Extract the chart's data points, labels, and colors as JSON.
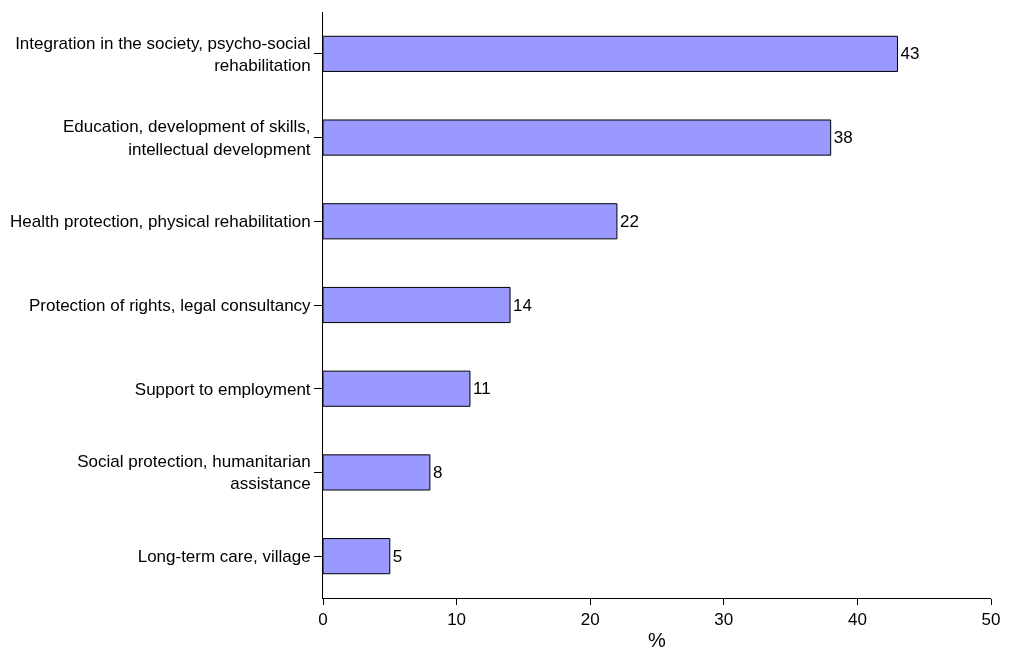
{
  "chart_data": {
    "type": "bar",
    "orientation": "horizontal",
    "xlabel": "%",
    "categories": [
      "Integration in the society, psycho-social\nrehabilitation",
      "Education, development of skills,\nintellectual development",
      "Health protection, physical rehabilitation",
      "Protection of rights, legal consultancy",
      "Support to employment",
      "Social protection, humanitarian\nassistance",
      "Long-term care, village"
    ],
    "values": [
      43,
      38,
      22,
      14,
      11,
      8,
      5
    ],
    "color": "#9999ff",
    "xlim": [
      0,
      50
    ],
    "xticks": [
      0,
      10,
      20,
      30,
      40,
      50
    ],
    "data_labels": true
  }
}
